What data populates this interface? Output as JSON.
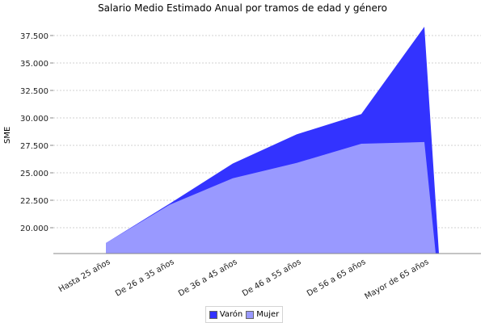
{
  "chart_data": {
    "type": "area",
    "title": "Salario Medio Estimado Anual por tramos de edad y género",
    "xlabel": "",
    "ylabel": "SME",
    "categories": [
      "Hasta 25 años",
      "De 26 a 35 años",
      "De 36 a 45 años",
      "De 46 a 55 años",
      "De 56 a 65 años",
      "Mayor de 65 años"
    ],
    "series": [
      {
        "name": "Varón",
        "color": "#3333FF",
        "values": [
          18600,
          22200,
          25850,
          28500,
          30350,
          38300
        ]
      },
      {
        "name": "Mujer",
        "color": "#9999FF",
        "values": [
          18600,
          22100,
          24500,
          25900,
          27650,
          27800
        ]
      }
    ],
    "yticks": [
      "20.000",
      "22.500",
      "25.000",
      "27.500",
      "30.000",
      "32.500",
      "35.000",
      "37.500"
    ],
    "ylim": [
      17650,
      39100
    ],
    "grid": true,
    "legend_position": "bottom"
  },
  "legend": {
    "items": [
      {
        "label": "Varón",
        "color": "#3333FF"
      },
      {
        "label": "Mujer",
        "color": "#9999FF"
      }
    ]
  }
}
